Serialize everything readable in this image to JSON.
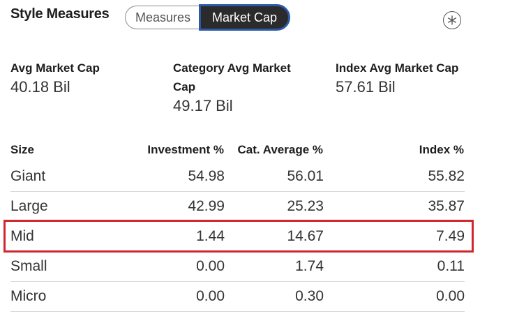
{
  "header": {
    "title": "Style Measures",
    "toggle": {
      "measures_label": "Measures",
      "marketcap_label": "Market Cap",
      "selected": "Market Cap"
    },
    "info_icon": "asterisk-circle-icon"
  },
  "summary": {
    "avg": {
      "label": "Avg Market Cap",
      "value": "40.18 Bil"
    },
    "category": {
      "label_line1": "Category Avg Market",
      "label_line2": "Cap",
      "value": "49.17 Bil"
    },
    "index": {
      "label": "Index Avg Market Cap",
      "value": "57.61 Bil"
    }
  },
  "table": {
    "headers": {
      "size": "Size",
      "investment": "Investment %",
      "cat_average": "Cat. Average %",
      "index": "Index %"
    },
    "rows": [
      {
        "size": "Giant",
        "investment": "54.98",
        "cat_average": "56.01",
        "index": "55.82"
      },
      {
        "size": "Large",
        "investment": "42.99",
        "cat_average": "25.23",
        "index": "35.87"
      },
      {
        "size": "Mid",
        "investment": "1.44",
        "cat_average": "14.67",
        "index": "7.49"
      },
      {
        "size": "Small",
        "investment": "0.00",
        "cat_average": "1.74",
        "index": "0.11"
      },
      {
        "size": "Micro",
        "investment": "0.00",
        "cat_average": "0.30",
        "index": "0.00"
      }
    ],
    "highlighted_row": "Mid"
  },
  "colors": {
    "highlight_border": "#d0262e",
    "selected_toggle_bg": "#2b2b2b",
    "selected_toggle_border": "#2b5aa8"
  }
}
